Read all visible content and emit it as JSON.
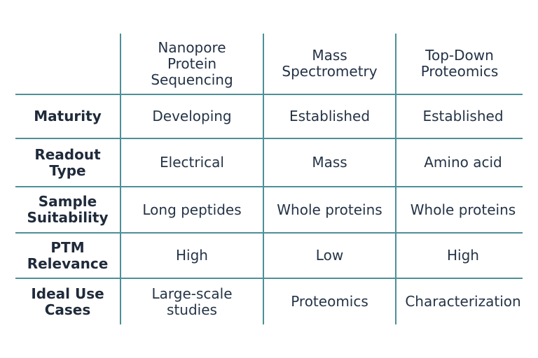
{
  "table": {
    "columns": [
      {
        "lines": [
          "Nanopore",
          "Protein",
          "Sequencing"
        ]
      },
      {
        "lines": [
          "Mass",
          "Spectrometry"
        ]
      },
      {
        "lines": [
          "Top-Down",
          "Proteomics"
        ]
      }
    ],
    "rows": [
      {
        "label": [
          "Maturity"
        ],
        "cells": [
          [
            "Developing"
          ],
          [
            "Established"
          ],
          [
            "Established"
          ]
        ]
      },
      {
        "label": [
          "Readout",
          "Type"
        ],
        "cells": [
          [
            "Electrical"
          ],
          [
            "Mass"
          ],
          [
            "Amino acid"
          ]
        ]
      },
      {
        "label": [
          "Sample",
          "Suitability"
        ],
        "cells": [
          [
            "Long peptides"
          ],
          [
            "Whole proteins"
          ],
          [
            "Whole proteins"
          ]
        ]
      },
      {
        "label": [
          "PTM",
          "Relevance"
        ],
        "cells": [
          [
            "High"
          ],
          [
            "Low"
          ],
          [
            "High"
          ]
        ]
      },
      {
        "label": [
          "Ideal Use",
          "Cases"
        ],
        "cells": [
          [
            "Large-scale",
            "studies"
          ],
          [
            "Proteomics"
          ],
          [
            "Characterization"
          ]
        ]
      }
    ]
  },
  "colors": {
    "grid_line": "#4f8f96",
    "text": "#1f2a3a",
    "background": "#ffffff"
  }
}
